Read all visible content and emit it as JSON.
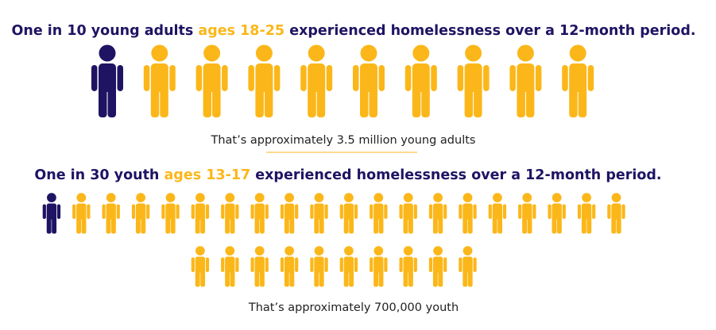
{
  "colors": {
    "highlight": "#1e1463",
    "base": "#fbb71a",
    "text": "#222222"
  },
  "sections": [
    {
      "title": [
        "One in 10 young adults ",
        "ages 18-25",
        " experienced homelessness over a 12-month period."
      ],
      "icons": 10,
      "highlighted": 1,
      "caption": "That’s approximately 3.5 million young adults"
    },
    {
      "title": [
        "One in 30 youth ",
        "ages 13-17",
        " experienced homelessness over a 12-month period."
      ],
      "icons": 30,
      "highlighted": 1,
      "caption": "That’s approximately 700,000 youth"
    }
  ]
}
